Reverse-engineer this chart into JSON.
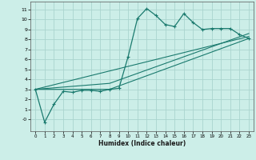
{
  "xlabel": "Humidex (Indice chaleur)",
  "bg_color": "#cceee8",
  "grid_color": "#aad4ce",
  "line_color": "#1a7a6e",
  "xlim": [
    -0.5,
    23.5
  ],
  "ylim": [
    -1.2,
    11.8
  ],
  "yticks": [
    0,
    1,
    2,
    3,
    4,
    5,
    6,
    7,
    8,
    9,
    10,
    11
  ],
  "ytick_labels": [
    "-0",
    "1",
    "2",
    "3",
    "4",
    "5",
    "6",
    "7",
    "8",
    "9",
    "10",
    "11"
  ],
  "xticks": [
    0,
    1,
    2,
    3,
    4,
    5,
    6,
    7,
    8,
    9,
    10,
    11,
    12,
    13,
    14,
    15,
    16,
    17,
    18,
    19,
    20,
    21,
    22,
    23
  ],
  "line1_x": [
    0,
    1,
    2,
    3,
    4,
    5,
    6,
    7,
    8,
    9,
    10,
    11,
    12,
    13,
    14,
    15,
    16,
    17,
    18,
    19,
    20,
    21,
    22,
    23
  ],
  "line1_y": [
    3.0,
    -0.3,
    1.5,
    2.8,
    2.7,
    2.9,
    2.9,
    2.8,
    3.0,
    3.1,
    6.3,
    10.1,
    11.1,
    10.4,
    9.5,
    9.3,
    10.6,
    9.7,
    9.0,
    9.1,
    9.1,
    9.1,
    8.5,
    8.1
  ],
  "line2_x": [
    0,
    23
  ],
  "line2_y": [
    3.0,
    8.3
  ],
  "line3_x": [
    0,
    8,
    23
  ],
  "line3_y": [
    3.0,
    3.6,
    8.6
  ],
  "line4_x": [
    0,
    8,
    23
  ],
  "line4_y": [
    3.0,
    3.0,
    8.1
  ]
}
